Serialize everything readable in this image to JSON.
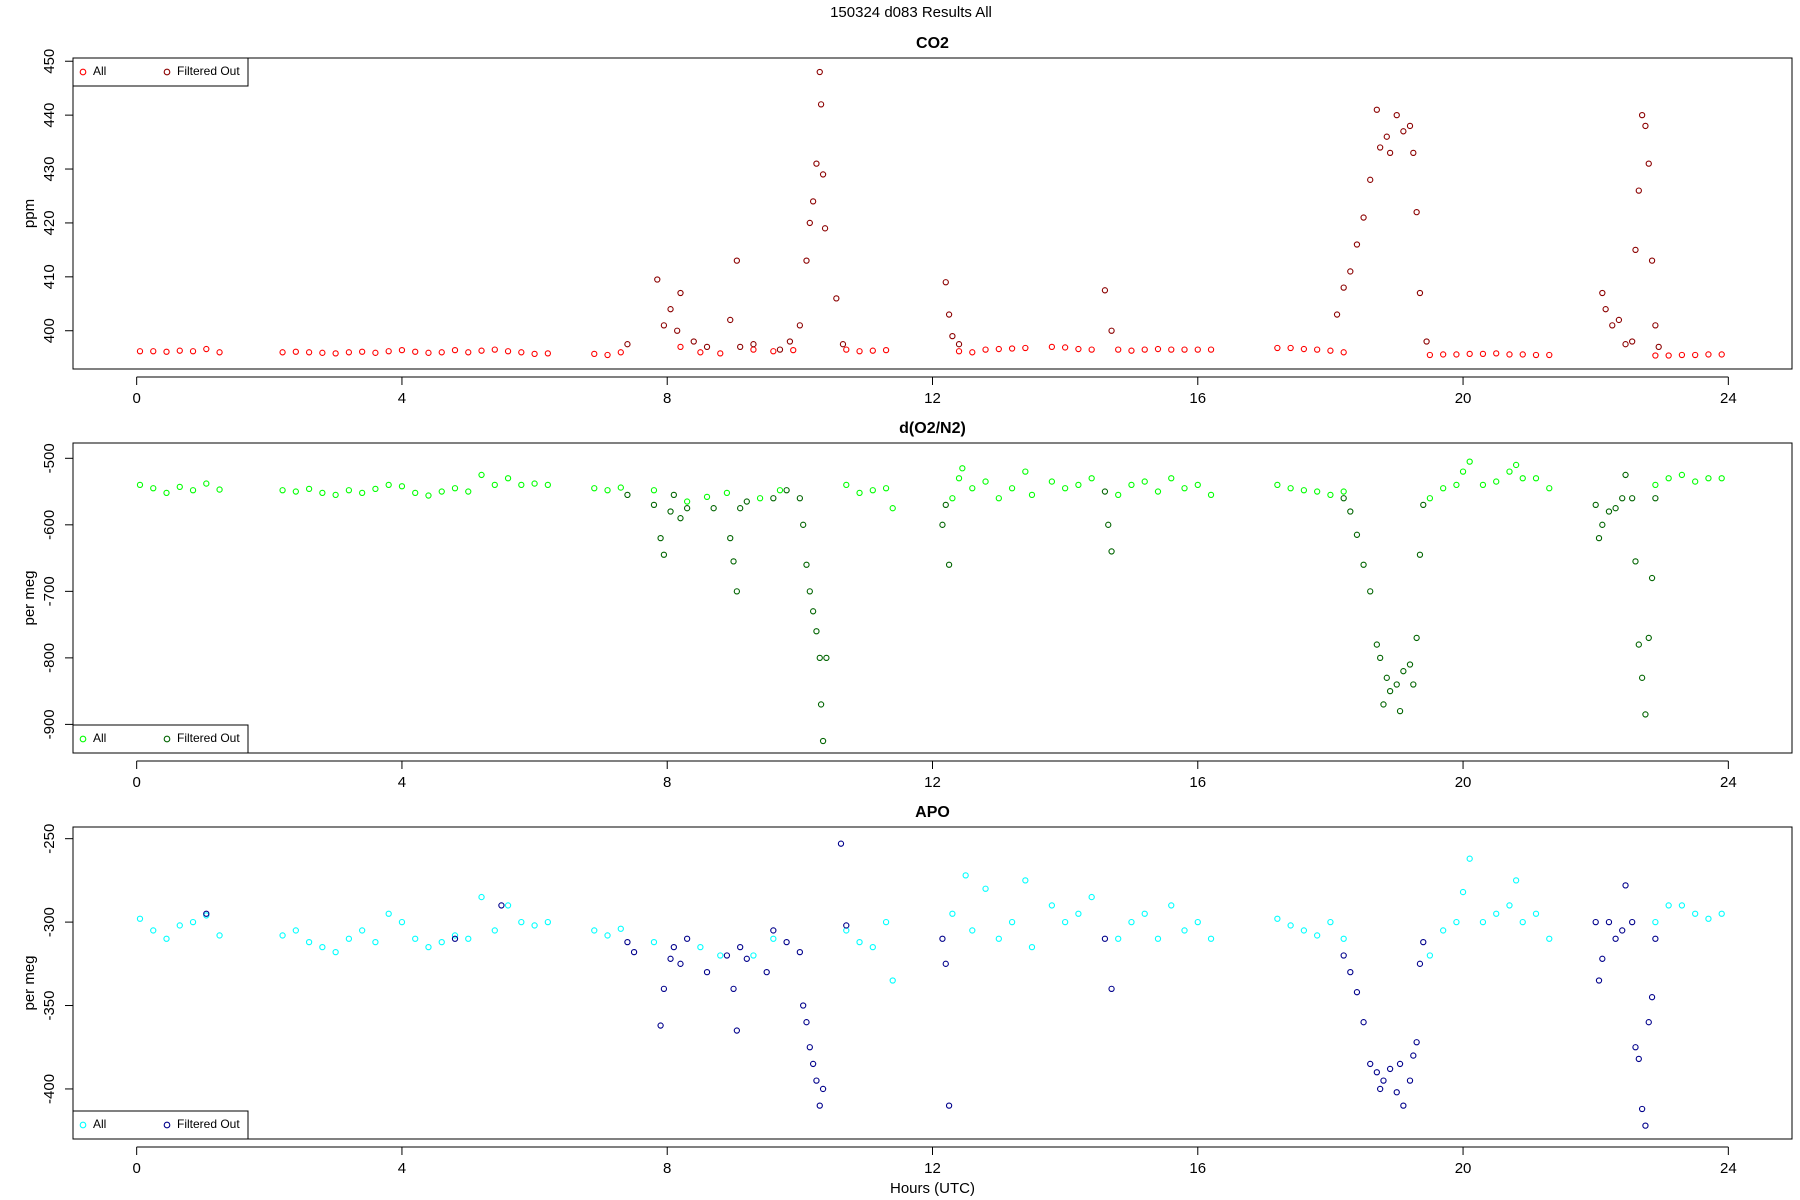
{
  "title": "150324   d083   Results All",
  "chart_data": [
    {
      "type": "scatter",
      "title": "CO2",
      "y_label": "ppm",
      "legend": "topleft",
      "grid": false,
      "xlim": [
        -0.96,
        24.96
      ],
      "xticks": [
        0,
        4,
        8,
        12,
        16,
        20,
        24
      ],
      "ylim": [
        392.9,
        450.6
      ],
      "yticks": [
        400,
        410,
        420,
        430,
        440,
        450
      ],
      "series": [
        {
          "name": "All",
          "color": "#ff0000",
          "x": [
            0.05,
            0.25,
            0.45,
            0.65,
            0.85,
            1.05,
            1.25,
            2.2,
            2.4,
            2.6,
            2.8,
            3.0,
            3.2,
            3.4,
            3.6,
            3.8,
            4.0,
            4.2,
            4.4,
            4.6,
            4.8,
            5.0,
            5.2,
            5.4,
            5.6,
            5.8,
            6.0,
            6.2,
            6.9,
            7.1,
            7.3,
            8.2,
            8.5,
            8.8,
            9.3,
            9.6,
            9.9,
            10.7,
            10.9,
            11.1,
            11.3,
            12.4,
            12.6,
            12.8,
            13.0,
            13.2,
            13.4,
            13.8,
            14.0,
            14.2,
            14.4,
            14.8,
            15.0,
            15.2,
            15.4,
            15.6,
            15.8,
            16.0,
            16.2,
            17.2,
            17.4,
            17.6,
            17.8,
            18.0,
            18.2,
            19.5,
            19.7,
            19.9,
            20.1,
            20.3,
            20.5,
            20.7,
            20.9,
            21.1,
            21.3,
            22.9,
            23.1,
            23.3,
            23.5,
            23.7,
            23.9
          ],
          "values": [
            396.2,
            396.2,
            396.1,
            396.3,
            396.2,
            396.6,
            396.0,
            396.0,
            396.1,
            396.0,
            395.9,
            395.8,
            396.0,
            396.1,
            395.9,
            396.2,
            396.4,
            396.1,
            395.9,
            396.0,
            396.4,
            396.0,
            396.3,
            396.5,
            396.2,
            396.0,
            395.7,
            395.8,
            395.7,
            395.5,
            396.0,
            397.0,
            396.0,
            395.8,
            396.5,
            396.2,
            396.4,
            396.5,
            396.2,
            396.3,
            396.4,
            396.2,
            396.0,
            396.5,
            396.6,
            396.7,
            396.8,
            397.0,
            396.9,
            396.6,
            396.5,
            396.5,
            396.3,
            396.5,
            396.6,
            396.5,
            396.5,
            396.5,
            396.5,
            396.8,
            396.8,
            396.6,
            396.5,
            396.3,
            396.0,
            395.5,
            395.6,
            395.6,
            395.7,
            395.7,
            395.8,
            395.6,
            395.6,
            395.5,
            395.5,
            395.4,
            395.4,
            395.5,
            395.5,
            395.6,
            395.6
          ]
        },
        {
          "name": "Filtered Out",
          "color": "#8b0000",
          "x": [
            7.4,
            7.85,
            7.95,
            8.05,
            8.15,
            8.2,
            8.4,
            8.6,
            8.95,
            9.05,
            9.1,
            9.3,
            9.7,
            9.85,
            10.0,
            10.1,
            10.15,
            10.2,
            10.25,
            10.3,
            10.32,
            10.35,
            10.38,
            10.55,
            10.65,
            12.2,
            12.25,
            12.3,
            12.4,
            14.6,
            14.7,
            18.1,
            18.2,
            18.3,
            18.4,
            18.5,
            18.6,
            18.7,
            18.75,
            18.85,
            18.9,
            19.0,
            19.1,
            19.2,
            19.25,
            19.3,
            19.35,
            19.45,
            22.1,
            22.15,
            22.25,
            22.35,
            22.45,
            22.55,
            22.6,
            22.65,
            22.7,
            22.75,
            22.8,
            22.85,
            22.9,
            22.95
          ],
          "values": [
            397.5,
            409.5,
            401,
            404,
            400,
            407,
            398,
            397,
            402,
            413,
            397,
            397.5,
            396.5,
            398,
            401,
            413,
            420,
            424,
            431,
            448,
            442,
            429,
            419,
            406,
            397.5,
            409,
            403,
            399,
            397.5,
            407.5,
            400,
            403,
            408,
            411,
            416,
            421,
            428,
            441,
            434,
            436,
            433,
            440,
            437,
            438,
            433,
            422,
            407,
            398,
            407,
            404,
            401,
            402,
            397.5,
            398,
            415,
            426,
            440,
            438,
            431,
            413,
            401,
            397
          ]
        }
      ]
    },
    {
      "type": "scatter",
      "title": "d(O2/N2)",
      "y_label": "per meg",
      "legend": "bottomleft",
      "grid": false,
      "xlim": [
        -0.96,
        24.96
      ],
      "xticks": [
        0,
        4,
        8,
        12,
        16,
        20,
        24
      ],
      "ylim": [
        -943,
        -477
      ],
      "yticks": [
        -900,
        -800,
        -700,
        -600,
        -500
      ],
      "series": [
        {
          "name": "All",
          "color": "#00ff00",
          "x": [
            0.05,
            0.25,
            0.45,
            0.65,
            0.85,
            1.05,
            1.25,
            2.2,
            2.4,
            2.6,
            2.8,
            3.0,
            3.2,
            3.4,
            3.6,
            3.8,
            4.0,
            4.2,
            4.4,
            4.6,
            4.8,
            5.0,
            5.2,
            5.4,
            5.6,
            5.8,
            6.0,
            6.2,
            6.9,
            7.1,
            7.3,
            7.8,
            8.3,
            8.6,
            8.9,
            9.4,
            9.7,
            10.7,
            10.9,
            11.1,
            11.3,
            11.4,
            12.3,
            12.4,
            12.45,
            12.6,
            12.8,
            13.0,
            13.2,
            13.4,
            13.5,
            13.8,
            14.0,
            14.2,
            14.4,
            14.8,
            15.0,
            15.2,
            15.4,
            15.6,
            15.8,
            16.0,
            16.2,
            17.2,
            17.4,
            17.6,
            17.8,
            18.0,
            18.2,
            19.5,
            19.7,
            19.9,
            20.0,
            20.1,
            20.3,
            20.5,
            20.7,
            20.8,
            20.9,
            21.1,
            21.3,
            22.9,
            23.1,
            23.3,
            23.5,
            23.7,
            23.9
          ],
          "values": [
            -540,
            -545,
            -552,
            -543,
            -548,
            -538,
            -547,
            -548,
            -550,
            -546,
            -552,
            -555,
            -548,
            -552,
            -546,
            -540,
            -542,
            -552,
            -556,
            -550,
            -545,
            -550,
            -525,
            -540,
            -530,
            -540,
            -538,
            -540,
            -545,
            -548,
            -544,
            -548,
            -565,
            -558,
            -552,
            -560,
            -548,
            -540,
            -552,
            -548,
            -545,
            -575,
            -560,
            -530,
            -515,
            -545,
            -535,
            -560,
            -545,
            -520,
            -555,
            -535,
            -545,
            -540,
            -530,
            -555,
            -540,
            -535,
            -550,
            -530,
            -545,
            -540,
            -555,
            -540,
            -545,
            -548,
            -550,
            -555,
            -550,
            -560,
            -545,
            -540,
            -520,
            -505,
            -540,
            -535,
            -520,
            -510,
            -530,
            -530,
            -545,
            -540,
            -530,
            -525,
            -535,
            -530,
            -530
          ]
        },
        {
          "name": "Filtered Out",
          "color": "#006400",
          "x": [
            7.4,
            7.8,
            7.9,
            7.95,
            8.05,
            8.1,
            8.2,
            8.3,
            8.7,
            8.95,
            9.0,
            9.05,
            9.1,
            9.2,
            9.6,
            9.8,
            10.0,
            10.05,
            10.1,
            10.15,
            10.2,
            10.25,
            10.3,
            10.32,
            10.35,
            10.4,
            12.15,
            12.2,
            12.25,
            14.6,
            14.65,
            14.7,
            18.2,
            18.3,
            18.4,
            18.5,
            18.6,
            18.7,
            18.75,
            18.8,
            18.85,
            18.9,
            19.0,
            19.05,
            19.1,
            19.2,
            19.25,
            19.3,
            19.35,
            19.4,
            22.0,
            22.05,
            22.1,
            22.2,
            22.3,
            22.4,
            22.45,
            22.55,
            22.6,
            22.65,
            22.7,
            22.75,
            22.8,
            22.85,
            22.9
          ],
          "values": [
            -555,
            -570,
            -620,
            -645,
            -580,
            -555,
            -590,
            -575,
            -575,
            -620,
            -655,
            -700,
            -575,
            -565,
            -560,
            -548,
            -560,
            -600,
            -660,
            -700,
            -730,
            -760,
            -800,
            -870,
            -925,
            -800,
            -600,
            -570,
            -660,
            -550,
            -600,
            -640,
            -560,
            -580,
            -615,
            -660,
            -700,
            -780,
            -800,
            -870,
            -830,
            -850,
            -840,
            -880,
            -820,
            -810,
            -840,
            -770,
            -645,
            -570,
            -570,
            -620,
            -600,
            -580,
            -575,
            -560,
            -525,
            -560,
            -655,
            -780,
            -830,
            -885,
            -770,
            -680,
            -560
          ]
        }
      ]
    },
    {
      "type": "scatter",
      "title": "APO",
      "y_label": "per meg",
      "x_label": "Hours (UTC)",
      "legend": "bottomleft",
      "grid": false,
      "xlim": [
        -0.96,
        24.96
      ],
      "xticks": [
        0,
        4,
        8,
        12,
        16,
        20,
        24
      ],
      "ylim": [
        -430,
        -243
      ],
      "yticks": [
        -400,
        -350,
        -300,
        -250
      ],
      "series": [
        {
          "name": "All",
          "color": "#00ffff",
          "x": [
            0.05,
            0.25,
            0.45,
            0.65,
            0.85,
            1.05,
            1.25,
            2.2,
            2.4,
            2.6,
            2.8,
            3.0,
            3.2,
            3.4,
            3.6,
            3.8,
            4.0,
            4.2,
            4.4,
            4.6,
            4.8,
            5.0,
            5.2,
            5.4,
            5.6,
            5.8,
            6.0,
            6.2,
            6.9,
            7.1,
            7.3,
            7.8,
            8.5,
            8.8,
            9.3,
            9.6,
            10.7,
            10.9,
            11.1,
            11.3,
            11.4,
            12.3,
            12.5,
            12.6,
            12.8,
            13.0,
            13.2,
            13.4,
            13.5,
            13.8,
            14.0,
            14.2,
            14.4,
            14.8,
            15.0,
            15.2,
            15.4,
            15.6,
            15.8,
            16.0,
            16.2,
            17.2,
            17.4,
            17.6,
            17.8,
            18.0,
            18.2,
            19.5,
            19.7,
            19.9,
            20.0,
            20.1,
            20.3,
            20.5,
            20.7,
            20.8,
            20.9,
            21.1,
            21.3,
            22.9,
            23.1,
            23.3,
            23.5,
            23.7,
            23.9
          ],
          "values": [
            -298,
            -305,
            -310,
            -302,
            -300,
            -296,
            -308,
            -308,
            -305,
            -312,
            -315,
            -318,
            -310,
            -305,
            -312,
            -295,
            -300,
            -310,
            -315,
            -312,
            -308,
            -310,
            -285,
            -305,
            -290,
            -300,
            -302,
            -300,
            -305,
            -308,
            -304,
            -312,
            -315,
            -320,
            -320,
            -310,
            -305,
            -312,
            -315,
            -300,
            -335,
            -295,
            -272,
            -305,
            -280,
            -310,
            -300,
            -275,
            -315,
            -290,
            -300,
            -295,
            -285,
            -310,
            -300,
            -295,
            -310,
            -290,
            -305,
            -300,
            -310,
            -298,
            -302,
            -305,
            -308,
            -300,
            -310,
            -320,
            -305,
            -300,
            -282,
            -262,
            -300,
            -295,
            -290,
            -275,
            -300,
            -295,
            -310,
            -300,
            -290,
            -290,
            -295,
            -298,
            -295
          ]
        },
        {
          "name": "Filtered Out",
          "color": "#00008b",
          "x": [
            1.05,
            4.8,
            5.5,
            7.4,
            7.5,
            7.9,
            7.95,
            8.05,
            8.1,
            8.2,
            8.3,
            8.6,
            8.9,
            9.0,
            9.05,
            9.1,
            9.2,
            9.5,
            9.6,
            9.8,
            10.0,
            10.05,
            10.1,
            10.15,
            10.2,
            10.25,
            10.3,
            10.35,
            10.62,
            10.7,
            12.15,
            12.2,
            12.25,
            14.6,
            14.7,
            18.2,
            18.3,
            18.4,
            18.5,
            18.6,
            18.7,
            18.75,
            18.8,
            18.9,
            19.0,
            19.05,
            19.1,
            19.2,
            19.25,
            19.3,
            19.35,
            19.4,
            22.0,
            22.05,
            22.1,
            22.2,
            22.3,
            22.4,
            22.45,
            22.55,
            22.6,
            22.65,
            22.7,
            22.75,
            22.8,
            22.85,
            22.9
          ],
          "values": [
            -295,
            -310,
            -290,
            -312,
            -318,
            -362,
            -340,
            -322,
            -315,
            -325,
            -310,
            -330,
            -320,
            -340,
            -365,
            -315,
            -322,
            -330,
            -305,
            -312,
            -318,
            -350,
            -360,
            -375,
            -385,
            -395,
            -410,
            -400,
            -253,
            -302,
            -310,
            -325,
            -410,
            -310,
            -340,
            -320,
            -330,
            -342,
            -360,
            -385,
            -390,
            -400,
            -395,
            -388,
            -402,
            -385,
            -410,
            -395,
            -380,
            -372,
            -325,
            -312,
            -300,
            -335,
            -322,
            -300,
            -310,
            -305,
            -278,
            -300,
            -375,
            -382,
            -412,
            -422,
            -360,
            -345,
            -310
          ]
        }
      ]
    }
  ]
}
